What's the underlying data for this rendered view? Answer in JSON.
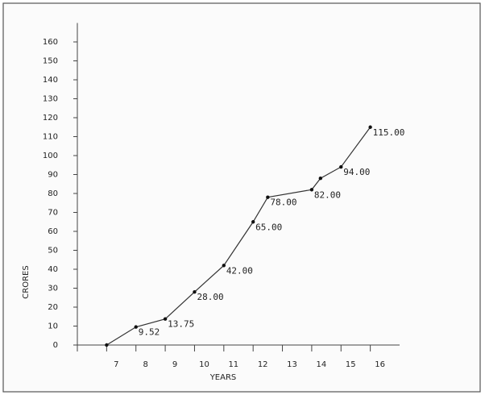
{
  "chart_data": {
    "type": "line",
    "x": [
      7,
      8,
      9,
      10,
      11,
      12,
      12.5,
      14,
      14.3,
      15,
      16
    ],
    "values": [
      0,
      9.52,
      13.75,
      28,
      42,
      65,
      78,
      82,
      88,
      94,
      115
    ],
    "value_labels": [
      null,
      "9.52",
      "13.75",
      "28.00",
      "42.00",
      "65.00",
      "78.00",
      "82.00",
      null,
      "94.00",
      "115.00"
    ],
    "xlabel": "YEARS",
    "ylabel": "CRORES",
    "xlim": [
      6,
      17
    ],
    "xticks": [
      7,
      8,
      9,
      10,
      11,
      12,
      13,
      14,
      15,
      16
    ],
    "ylim": [
      0,
      170
    ],
    "yticks": [
      0,
      10,
      20,
      30,
      40,
      50,
      60,
      70,
      80,
      90,
      100,
      110,
      120,
      130,
      140,
      150,
      160
    ],
    "color": "#333333"
  }
}
